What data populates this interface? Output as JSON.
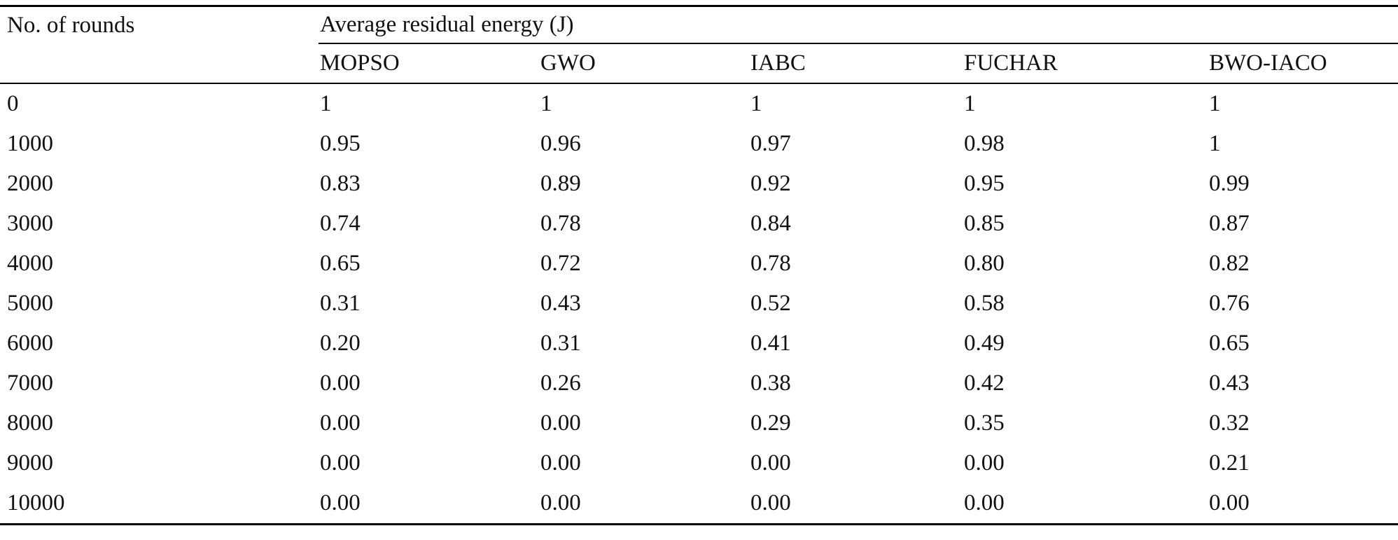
{
  "table": {
    "row_header": "No. of rounds",
    "group_header": "Average residual energy (J)",
    "columns": [
      "MOPSO",
      "GWO",
      "IABC",
      "FUCHAR",
      "BWO-IACO"
    ],
    "rows": [
      {
        "rounds": "0",
        "values": [
          "1",
          "1",
          "1",
          "1",
          "1"
        ]
      },
      {
        "rounds": "1000",
        "values": [
          "0.95",
          "0.96",
          "0.97",
          "0.98",
          "1"
        ]
      },
      {
        "rounds": "2000",
        "values": [
          "0.83",
          "0.89",
          "0.92",
          "0.95",
          "0.99"
        ]
      },
      {
        "rounds": "3000",
        "values": [
          "0.74",
          "0.78",
          "0.84",
          "0.85",
          "0.87"
        ]
      },
      {
        "rounds": "4000",
        "values": [
          "0.65",
          "0.72",
          "0.78",
          "0.80",
          "0.82"
        ]
      },
      {
        "rounds": "5000",
        "values": [
          "0.31",
          "0.43",
          "0.52",
          "0.58",
          "0.76"
        ]
      },
      {
        "rounds": "6000",
        "values": [
          "0.20",
          "0.31",
          "0.41",
          "0.49",
          "0.65"
        ]
      },
      {
        "rounds": "7000",
        "values": [
          "0.00",
          "0.26",
          "0.38",
          "0.42",
          "0.43"
        ]
      },
      {
        "rounds": "8000",
        "values": [
          "0.00",
          "0.00",
          "0.29",
          "0.35",
          "0.32"
        ]
      },
      {
        "rounds": "9000",
        "values": [
          "0.00",
          "0.00",
          "0.00",
          "0.00",
          "0.21"
        ]
      },
      {
        "rounds": "10000",
        "values": [
          "0.00",
          "0.00",
          "0.00",
          "0.00",
          "0.00"
        ]
      }
    ]
  }
}
